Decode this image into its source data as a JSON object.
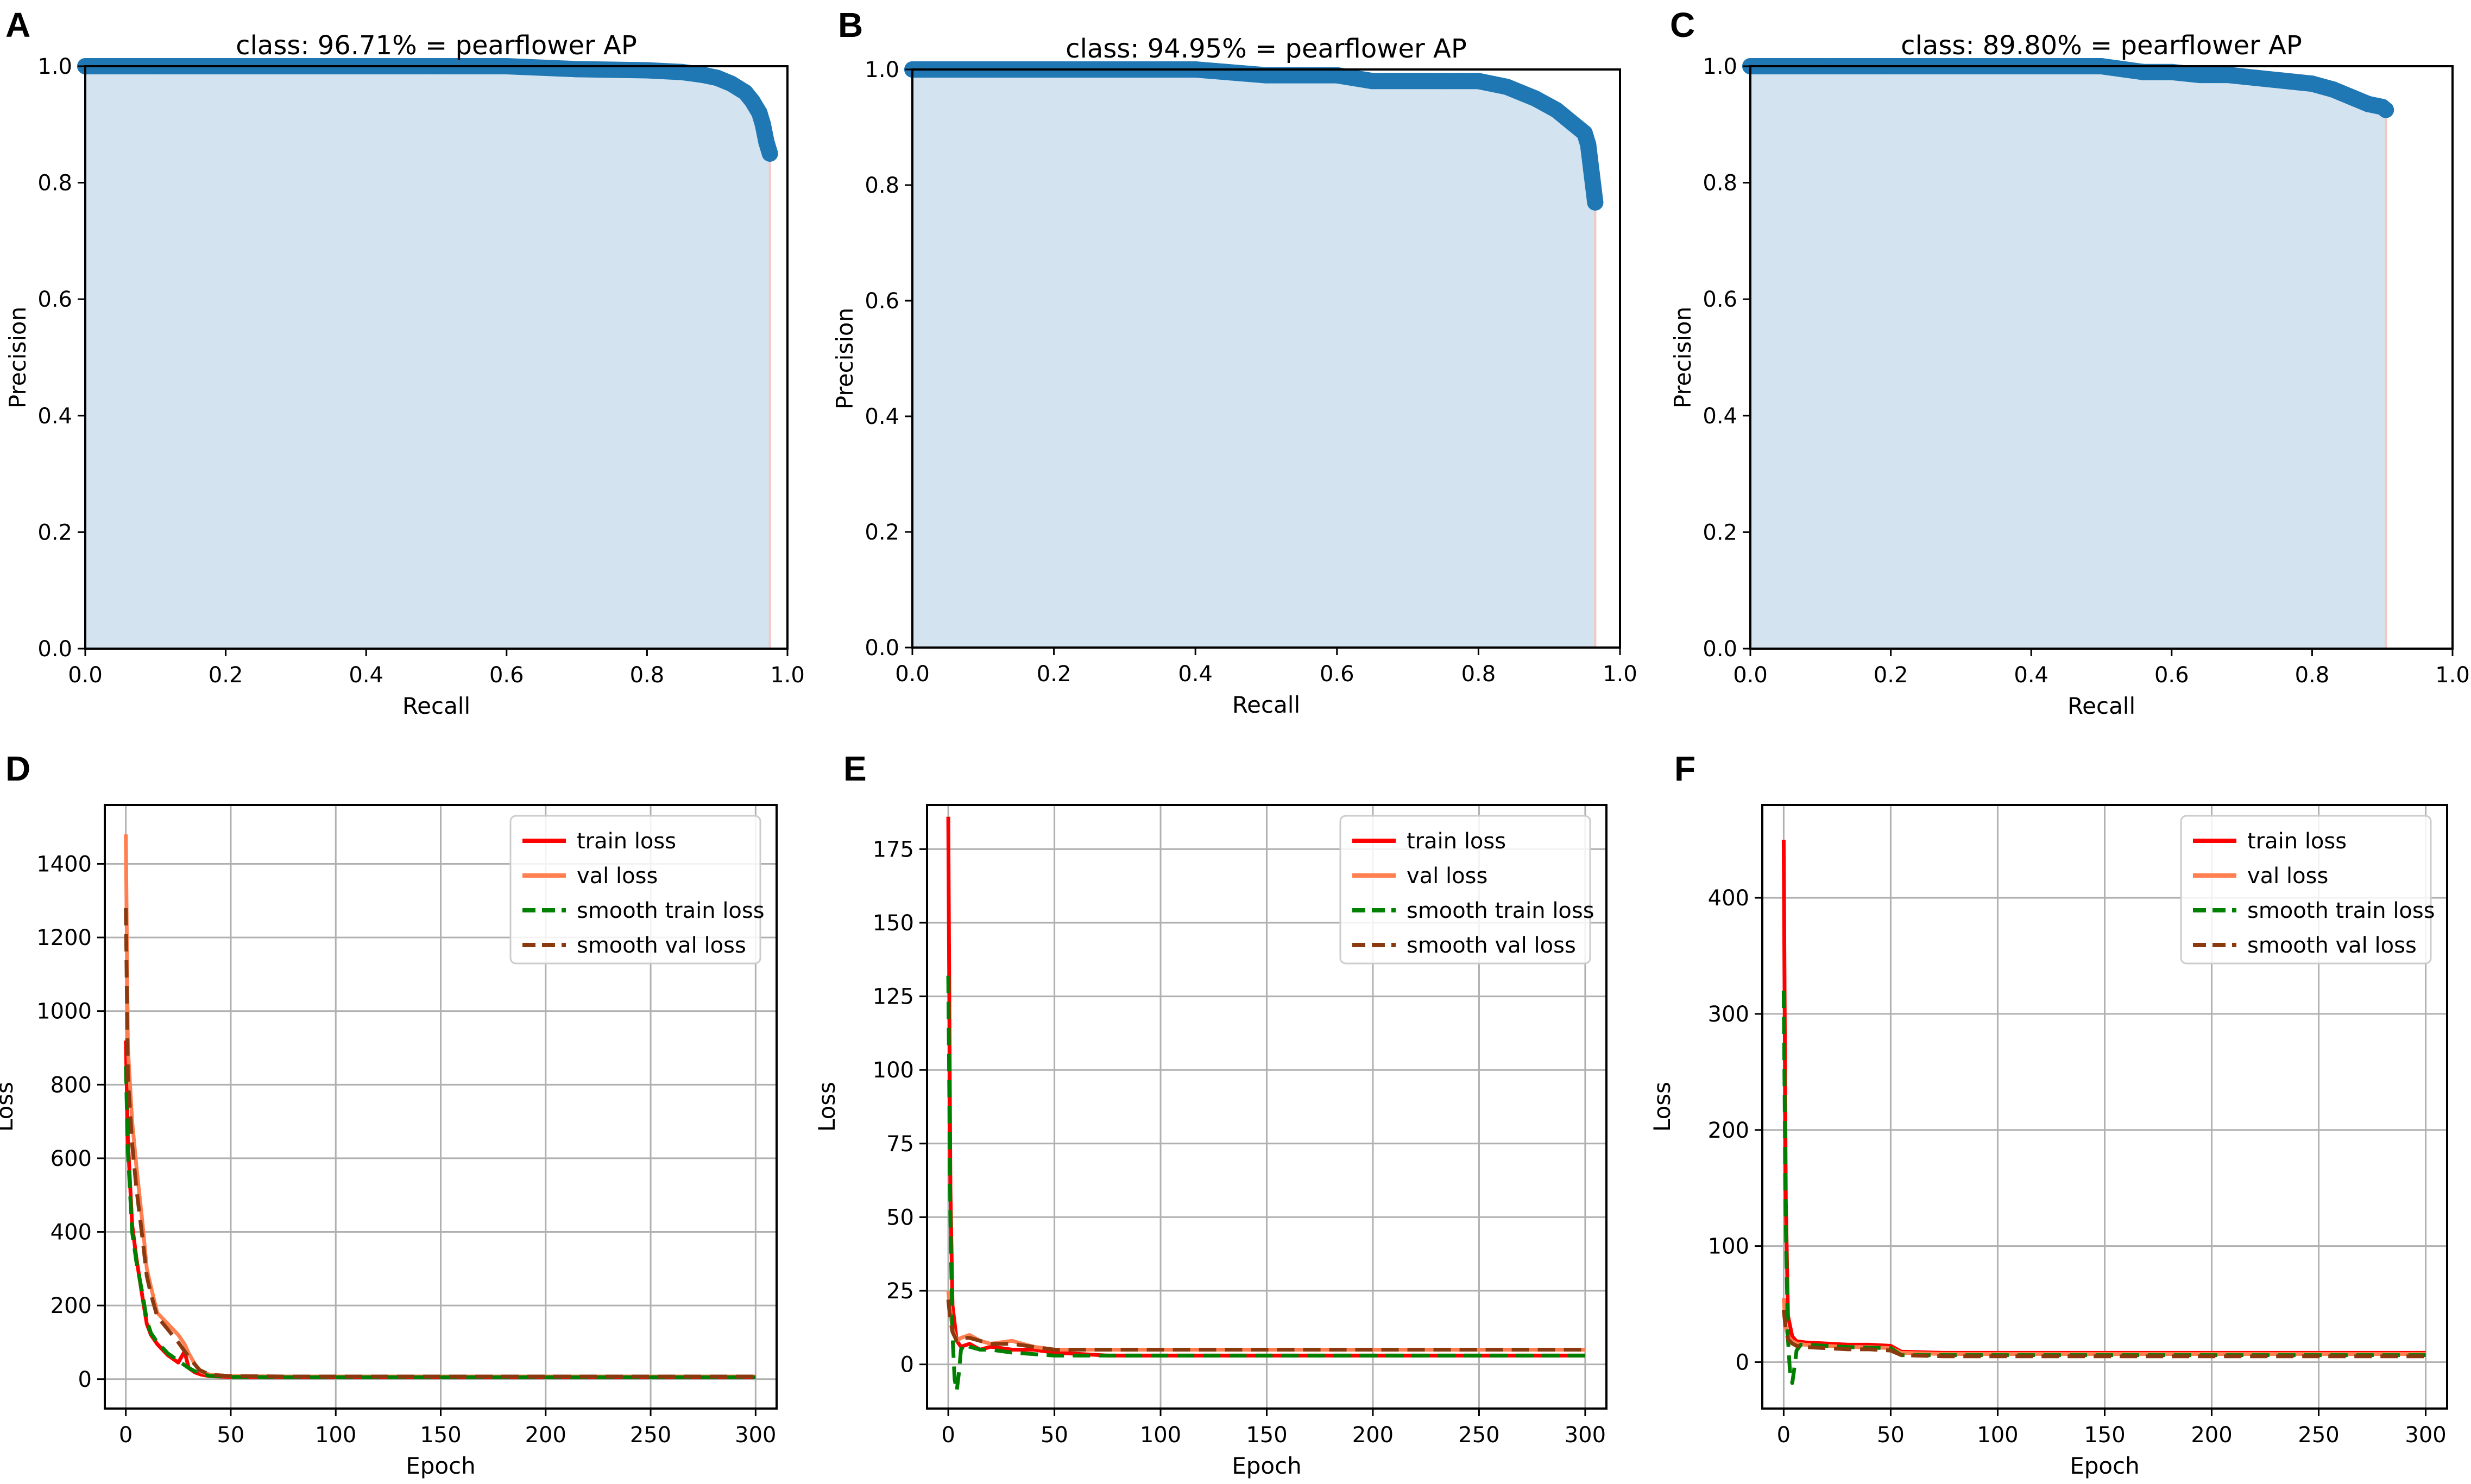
{
  "figure": {
    "panels": [
      "A",
      "B",
      "C",
      "D",
      "E",
      "F"
    ]
  },
  "colors": {
    "pr_line": "#1f77b4",
    "pr_fill": "#d3e3f0",
    "pr_drop": "#f4c7c3",
    "train_loss": "#ff0000",
    "val_loss": "#ff7f50",
    "smooth_train_loss": "#008000",
    "smooth_val_loss": "#8b3a0f",
    "grid": "#b0b0b0",
    "axis": "#000000"
  },
  "chart_data": [
    {
      "panel": "A",
      "type": "area",
      "title": "class: 96.71% = pearflower AP",
      "xlabel": "Recall",
      "ylabel": "Precision",
      "xlim": [
        0.0,
        1.0
      ],
      "ylim": [
        0.0,
        1.0
      ],
      "xticks": [
        "0.0",
        "0.2",
        "0.4",
        "0.6",
        "0.8",
        "1.0"
      ],
      "yticks": [
        "0.0",
        "0.2",
        "0.4",
        "0.6",
        "0.8",
        "1.0"
      ],
      "grid": false,
      "x": [
        0.0,
        0.1,
        0.2,
        0.3,
        0.4,
        0.5,
        0.6,
        0.7,
        0.8,
        0.85,
        0.88,
        0.9,
        0.92,
        0.94,
        0.95,
        0.96,
        0.965,
        0.97,
        0.975
      ],
      "y": [
        1.0,
        1.0,
        1.0,
        1.0,
        1.0,
        1.0,
        1.0,
        0.995,
        0.993,
        0.99,
        0.985,
        0.98,
        0.97,
        0.955,
        0.94,
        0.92,
        0.9,
        0.87,
        0.85
      ]
    },
    {
      "panel": "B",
      "type": "area",
      "title": "class: 94.95% = pearflower AP",
      "xlabel": "Recall",
      "ylabel": "Precision",
      "xlim": [
        0.0,
        1.0
      ],
      "ylim": [
        0.0,
        1.0
      ],
      "xticks": [
        "0.0",
        "0.2",
        "0.4",
        "0.6",
        "0.8",
        "1.0"
      ],
      "yticks": [
        "0.0",
        "0.2",
        "0.4",
        "0.6",
        "0.8",
        "1.0"
      ],
      "grid": false,
      "x": [
        0.0,
        0.1,
        0.2,
        0.3,
        0.4,
        0.45,
        0.5,
        0.55,
        0.6,
        0.65,
        0.7,
        0.75,
        0.8,
        0.84,
        0.88,
        0.91,
        0.93,
        0.95,
        0.955,
        0.96,
        0.965
      ],
      "y": [
        1.0,
        1.0,
        1.0,
        1.0,
        1.0,
        0.995,
        0.99,
        0.99,
        0.99,
        0.98,
        0.98,
        0.98,
        0.98,
        0.97,
        0.95,
        0.93,
        0.91,
        0.89,
        0.87,
        0.82,
        0.77
      ]
    },
    {
      "panel": "C",
      "type": "area",
      "title": "class: 89.80% = pearflower AP",
      "xlabel": "Recall",
      "ylabel": "Precision",
      "xlim": [
        0.0,
        1.0
      ],
      "ylim": [
        0.0,
        1.0
      ],
      "xticks": [
        "0.0",
        "0.2",
        "0.4",
        "0.6",
        "0.8",
        "1.0"
      ],
      "yticks": [
        "0.0",
        "0.2",
        "0.4",
        "0.6",
        "0.8",
        "1.0"
      ],
      "grid": false,
      "x": [
        0.0,
        0.1,
        0.2,
        0.3,
        0.4,
        0.5,
        0.53,
        0.56,
        0.6,
        0.64,
        0.68,
        0.72,
        0.76,
        0.8,
        0.83,
        0.86,
        0.88,
        0.9,
        0.905
      ],
      "y": [
        1.0,
        1.0,
        1.0,
        1.0,
        1.0,
        1.0,
        0.995,
        0.99,
        0.99,
        0.985,
        0.985,
        0.98,
        0.975,
        0.97,
        0.96,
        0.945,
        0.935,
        0.93,
        0.925
      ]
    },
    {
      "panel": "D",
      "type": "line",
      "xlabel": "Epoch",
      "ylabel": "Loss",
      "xlim": [
        -10,
        310
      ],
      "ylim": [
        -80,
        1560
      ],
      "xticks": [
        0,
        50,
        100,
        150,
        200,
        250,
        300
      ],
      "yticks": [
        0,
        200,
        400,
        600,
        800,
        1000,
        1200,
        1400
      ],
      "grid": true,
      "legend": "top-right",
      "series": [
        {
          "name": "train loss",
          "style": "solid",
          "color_key": "train_loss",
          "x": [
            0,
            1,
            3,
            5,
            8,
            10,
            12,
            15,
            20,
            25,
            28,
            30,
            33,
            36,
            40,
            50,
            75,
            100,
            150,
            200,
            250,
            300
          ],
          "y": [
            920,
            650,
            420,
            330,
            220,
            150,
            120,
            95,
            65,
            45,
            75,
            30,
            18,
            12,
            8,
            6,
            5,
            5,
            5,
            5,
            5,
            5
          ]
        },
        {
          "name": "val loss",
          "style": "solid",
          "color_key": "val_loss",
          "x": [
            0,
            1,
            3,
            5,
            8,
            10,
            12,
            15,
            20,
            25,
            28,
            30,
            33,
            36,
            40,
            50,
            75,
            100,
            150,
            200,
            250,
            300
          ],
          "y": [
            1480,
            900,
            700,
            580,
            420,
            300,
            250,
            180,
            150,
            120,
            95,
            70,
            40,
            20,
            12,
            8,
            7,
            7,
            7,
            7,
            7,
            7
          ]
        },
        {
          "name": "smooth train loss",
          "style": "dashed",
          "color_key": "smooth_train_loss",
          "x": [
            0,
            1,
            3,
            5,
            8,
            10,
            12,
            15,
            20,
            25,
            30,
            35,
            40,
            50,
            75,
            100,
            150,
            200,
            250,
            300
          ],
          "y": [
            850,
            620,
            400,
            320,
            230,
            160,
            125,
            100,
            70,
            50,
            30,
            15,
            9,
            6,
            5,
            5,
            5,
            5,
            5,
            5
          ]
        },
        {
          "name": "smooth val loss",
          "style": "dashed",
          "color_key": "smooth_val_loss",
          "x": [
            0,
            1,
            3,
            5,
            8,
            10,
            12,
            15,
            20,
            25,
            30,
            35,
            40,
            50,
            75,
            100,
            150,
            200,
            250,
            300
          ],
          "y": [
            1280,
            820,
            640,
            520,
            380,
            280,
            230,
            170,
            135,
            100,
            60,
            25,
            12,
            8,
            7,
            7,
            7,
            7,
            7,
            7
          ]
        }
      ]
    },
    {
      "panel": "E",
      "type": "line",
      "xlabel": "Epoch",
      "ylabel": "Loss",
      "xlim": [
        -10,
        310
      ],
      "ylim": [
        -15,
        190
      ],
      "xticks": [
        0,
        50,
        100,
        150,
        200,
        250,
        300
      ],
      "yticks": [
        0,
        25,
        50,
        75,
        100,
        125,
        150,
        175
      ],
      "grid": true,
      "legend": "top-right",
      "series": [
        {
          "name": "train loss",
          "style": "solid",
          "color_key": "train_loss",
          "x": [
            0,
            1,
            2,
            4,
            6,
            10,
            15,
            20,
            30,
            40,
            50,
            75,
            100,
            150,
            200,
            250,
            300
          ],
          "y": [
            186,
            60,
            20,
            8,
            6,
            7,
            5,
            6,
            5,
            5,
            4,
            3,
            3,
            3,
            3,
            3,
            3
          ]
        },
        {
          "name": "val loss",
          "style": "solid",
          "color_key": "val_loss",
          "x": [
            0,
            1,
            2,
            4,
            6,
            10,
            15,
            20,
            30,
            40,
            50,
            75,
            100,
            150,
            200,
            250,
            300
          ],
          "y": [
            25,
            18,
            12,
            8,
            9,
            10,
            8,
            7,
            8,
            6,
            5,
            5,
            5,
            5,
            5,
            5,
            5
          ]
        },
        {
          "name": "smooth train loss",
          "style": "dashed",
          "color_key": "smooth_train_loss",
          "x": [
            0,
            1,
            2,
            3,
            4,
            5,
            6,
            8,
            10,
            15,
            20,
            30,
            50,
            75,
            100,
            150,
            200,
            250,
            300
          ],
          "y": [
            132,
            50,
            10,
            -5,
            -9,
            -3,
            5,
            7,
            6,
            5,
            5,
            4,
            3,
            3,
            3,
            3,
            3,
            3,
            3
          ]
        },
        {
          "name": "smooth val loss",
          "style": "dashed",
          "color_key": "smooth_val_loss",
          "x": [
            0,
            1,
            2,
            4,
            6,
            10,
            15,
            20,
            30,
            40,
            50,
            75,
            100,
            150,
            200,
            250,
            300
          ],
          "y": [
            22,
            15,
            11,
            8,
            9,
            9,
            8,
            7,
            7,
            6,
            5,
            5,
            5,
            5,
            5,
            5,
            5
          ]
        }
      ]
    },
    {
      "panel": "F",
      "type": "line",
      "xlabel": "Epoch",
      "ylabel": "Loss",
      "xlim": [
        -10,
        310
      ],
      "ylim": [
        -40,
        480
      ],
      "xticks": [
        0,
        50,
        100,
        150,
        200,
        250,
        300
      ],
      "yticks": [
        0,
        100,
        200,
        300,
        400
      ],
      "grid": true,
      "legend": "top-right",
      "series": [
        {
          "name": "train loss",
          "style": "solid",
          "color_key": "train_loss",
          "x": [
            0,
            1,
            2,
            4,
            6,
            10,
            20,
            30,
            40,
            50,
            55,
            75,
            100,
            150,
            200,
            250,
            300
          ],
          "y": [
            450,
            140,
            40,
            22,
            18,
            17,
            16,
            15,
            15,
            14,
            9,
            8,
            8,
            8,
            8,
            8,
            8
          ]
        },
        {
          "name": "val loss",
          "style": "solid",
          "color_key": "val_loss",
          "x": [
            0,
            1,
            2,
            4,
            6,
            10,
            20,
            30,
            40,
            50,
            55,
            75,
            100,
            150,
            200,
            250,
            300
          ],
          "y": [
            55,
            30,
            22,
            18,
            16,
            15,
            14,
            13,
            13,
            12,
            8,
            7,
            7,
            7,
            7,
            7,
            7
          ]
        },
        {
          "name": "smooth train loss",
          "style": "dashed",
          "color_key": "smooth_train_loss",
          "x": [
            0,
            1,
            2,
            3,
            4,
            5,
            6,
            8,
            10,
            20,
            30,
            50,
            55,
            75,
            100,
            150,
            200,
            250,
            300
          ],
          "y": [
            320,
            120,
            20,
            -10,
            -18,
            -5,
            10,
            15,
            15,
            14,
            13,
            12,
            6,
            6,
            6,
            6,
            6,
            6,
            6
          ]
        },
        {
          "name": "smooth val loss",
          "style": "dashed",
          "color_key": "smooth_val_loss",
          "x": [
            0,
            1,
            2,
            4,
            6,
            10,
            20,
            30,
            40,
            50,
            55,
            75,
            100,
            150,
            200,
            250,
            300
          ],
          "y": [
            45,
            28,
            20,
            16,
            14,
            13,
            12,
            11,
            11,
            10,
            6,
            5,
            5,
            5,
            5,
            5,
            5
          ]
        }
      ]
    }
  ]
}
